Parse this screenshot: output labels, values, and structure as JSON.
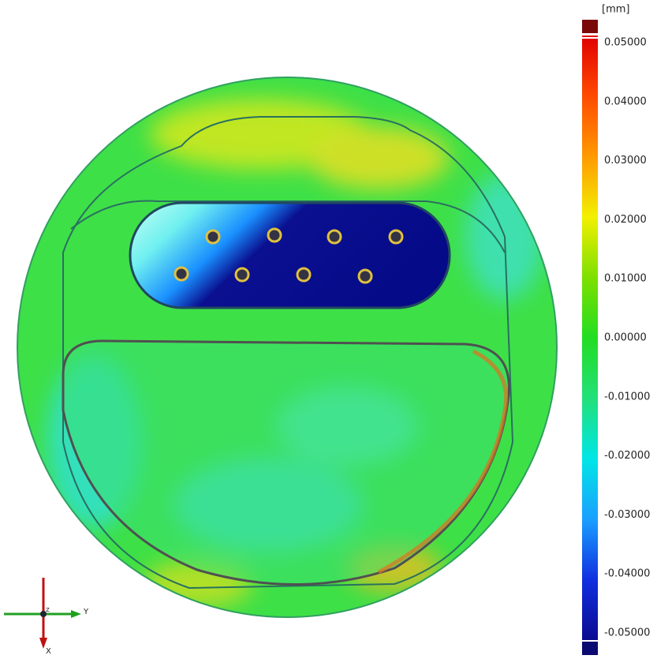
{
  "legend": {
    "unit": "[mm]",
    "ticks": [
      "0.05000",
      "0.04000",
      "0.03000",
      "0.02000",
      "0.01000",
      "0.00000",
      "-0.01000",
      "-0.02000",
      "-0.03000",
      "-0.04000",
      "-0.05000"
    ]
  },
  "triad": {
    "y_label": "Y",
    "x_label": "X",
    "z_label": "Z"
  }
}
